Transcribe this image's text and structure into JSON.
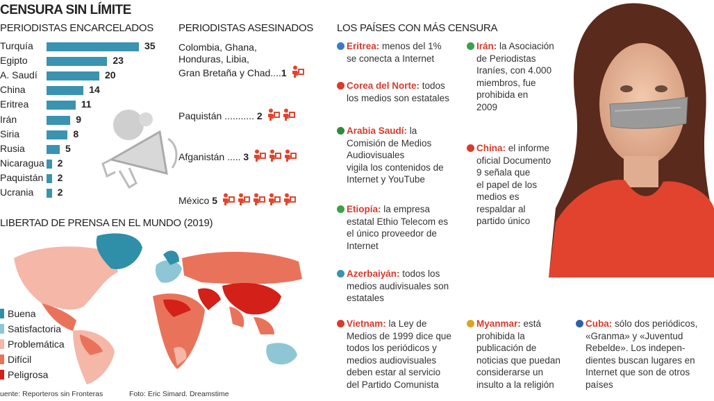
{
  "title": "CENSURA SIN LÍMITE",
  "jailed": {
    "heading": "PERIODISTAS ENCARCELADOS"
  },
  "chart_data": [
    {
      "type": "bar",
      "title": "PERIODISTAS ENCARCELADOS",
      "orientation": "horizontal",
      "categories": [
        "Turquía",
        "Egipto",
        "A. Saudí",
        "China",
        "Eritrea",
        "Irán",
        "Siria",
        "Rusia",
        "Nicaragua",
        "Paquistán",
        "Ucrania"
      ],
      "values": [
        35,
        23,
        20,
        14,
        11,
        9,
        8,
        5,
        2,
        2,
        2
      ],
      "color": "#3a93b1"
    },
    {
      "type": "table",
      "title": "PERIODISTAS ASESINADOS",
      "rows": [
        {
          "label": "Colombia, Ghana, Honduras, Libia, Gran Bretaña y Chad",
          "label_lines": [
            "Colombia, Ghana,",
            "Honduras, Libia,",
            "Gran Bretaña y Chad"
          ],
          "value": 1
        },
        {
          "label": "Paquistán",
          "value": 2
        },
        {
          "label": "Afganistán",
          "value": 3
        },
        {
          "label": "México",
          "value": 5
        }
      ],
      "icon": "journalist-icon",
      "icon_color": "#e0462f"
    }
  ],
  "killed": {
    "heading": "PERIODISTAS ASESINADOS",
    "row1_lines": [
      "Colombia, Ghana,",
      "Honduras, Libia,"
    ],
    "row1_last": "Gran Bretaña y Chad",
    "row1_dots": "....",
    "row1_value": "1",
    "row2_label": "Paquistán",
    "row2_dots": "...........",
    "row2_value": "2",
    "row3_label": "Afganistán",
    "row3_dots": ".....",
    "row3_value": "3",
    "row4_label": "México",
    "row4_value": "5"
  },
  "censorship": {
    "heading": "LOS PAÍSES CON MÁS CENSURA",
    "countries": [
      {
        "name": "Eritrea:",
        "lines": [
          " menos del 1%",
          "se conecta a Internet"
        ],
        "flag": "#3a7bc8"
      },
      {
        "name": "Corea del Norte:",
        "lines": [
          " todos",
          "los medios son estatales"
        ],
        "flag": "#d93a2b"
      },
      {
        "name": "Arabia Saudí:",
        "lines": [
          " la",
          "Comisión de Medios",
          "Audiovisuales",
          "vigila los contenidos de",
          "Internet y YouTube"
        ],
        "flag": "#2e8b3e"
      },
      {
        "name": "Etiopía:",
        "lines": [
          " la empresa",
          "estatal Ethio Telecom es",
          "el único proveedor de",
          "Internet"
        ],
        "flag": "#3aa04a"
      },
      {
        "name": "Azerbaiyán:",
        "lines": [
          " todos los",
          "medios audivisuales son",
          "estatales"
        ],
        "flag": "#3a93b1"
      },
      {
        "name": "Vietnam:",
        "lines": [
          " la Ley de",
          "Medios de 1999 dice que",
          "todos los periódicos y",
          "medios audiovisuales",
          "deben estar al servicio",
          "del Partido Comunista"
        ],
        "flag": "#d93a2b"
      },
      {
        "name": "Irán:",
        "lines": [
          " la Asociación",
          "de Periodistas",
          "Iraníes, con 4.000",
          "miembros, fue",
          "prohibida en",
          "2009"
        ],
        "flag": "#3aa04a"
      },
      {
        "name": "China:",
        "lines": [
          " el informe",
          "oficial Documento",
          "9 señala que",
          "el papel de los",
          "medios es",
          "respaldar al",
          "partido único"
        ],
        "flag": "#d93a2b"
      },
      {
        "name": "Myanmar:",
        "lines": [
          " está",
          "prohibida la",
          "publicación de",
          "noticias que puedan",
          "considerarse un",
          "insulto a la religión"
        ],
        "flag": "#d9a521"
      },
      {
        "name": "Cuba:",
        "lines": [
          " sólo dos periódicos,",
          "«Granma» y «Juventud",
          "Rebelde». Los indepen-",
          "dientes buscan lugares en",
          "Internet que son de otros",
          "países"
        ],
        "flag": "#2f5fa8"
      }
    ]
  },
  "map": {
    "heading": "LIBERTAD DE PRENSA EN EL MUNDO",
    "year": "(2019)",
    "legend": [
      {
        "label": "Buena",
        "color": "#2f8fa8"
      },
      {
        "label": "Satisfactoria",
        "color": "#8ec6d6"
      },
      {
        "label": "Problemática",
        "color": "#f4b7a8"
      },
      {
        "label": "Difícil",
        "color": "#e9735a"
      },
      {
        "label": "Peligrosa",
        "color": "#d32018"
      }
    ]
  },
  "footer": {
    "source": "uente: Reporteros sin Fronteras",
    "photo": "Foto: Eric Simard. Dreamstime"
  }
}
